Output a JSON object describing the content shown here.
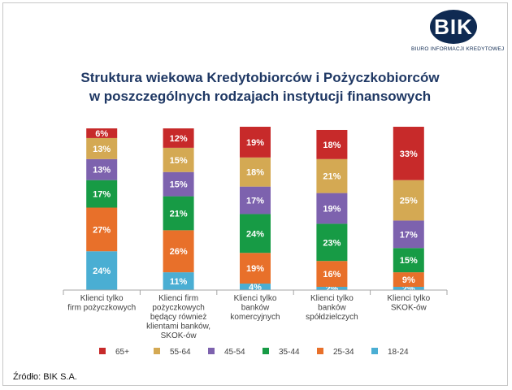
{
  "logo": {
    "text": "BIK",
    "subtitle": "BIURO INFORMACJI KREDYTOWEJ",
    "color": "#0f2a52"
  },
  "title_lines": [
    "Struktura wiekowa Kredytobiorców i Pożyczkobiorców",
    "w poszczególnych rodzajach instytucji finansowych"
  ],
  "source": "Źródło: BIK S.A.",
  "chart_data": {
    "type": "bar",
    "stacked": true,
    "title": "Struktura wiekowa Kredytobiorców i Pożyczkobiorców w poszczególnych rodzajach instytucji finansowych",
    "categories": [
      [
        "Klienci tylko",
        "firm pożyczkowych"
      ],
      [
        "Klienci firm",
        "pożyczkowych",
        "będący również",
        "klientami banków,",
        "SKOK-ów"
      ],
      [
        "Klienci tylko",
        "banków",
        "komercyjnych"
      ],
      [
        "Klienci tylko",
        "banków",
        "spółdzielczych"
      ],
      [
        "Klienci tylko",
        "SKOK-ów"
      ]
    ],
    "series": [
      {
        "name": "18-24",
        "color": "#4aaed3",
        "values": [
          24,
          11,
          4,
          2,
          2
        ]
      },
      {
        "name": "25-34",
        "color": "#e8702a",
        "values": [
          27,
          26,
          19,
          16,
          9
        ]
      },
      {
        "name": "35-44",
        "color": "#179b45",
        "values": [
          17,
          21,
          24,
          23,
          15
        ]
      },
      {
        "name": "45-54",
        "color": "#7d62ae",
        "values": [
          13,
          15,
          17,
          19,
          17
        ]
      },
      {
        "name": "55-64",
        "color": "#d4a953",
        "values": [
          13,
          15,
          18,
          21,
          25
        ]
      },
      {
        "name": "65+",
        "color": "#c72a2a",
        "values": [
          6,
          12,
          19,
          18,
          33
        ]
      }
    ],
    "legend_order": [
      "65+",
      "55-64",
      "45-54",
      "35-44",
      "25-34",
      "18-24"
    ],
    "value_suffix": "%",
    "ylim": [
      0,
      100
    ],
    "legend_position": "bottom",
    "grid": false
  }
}
